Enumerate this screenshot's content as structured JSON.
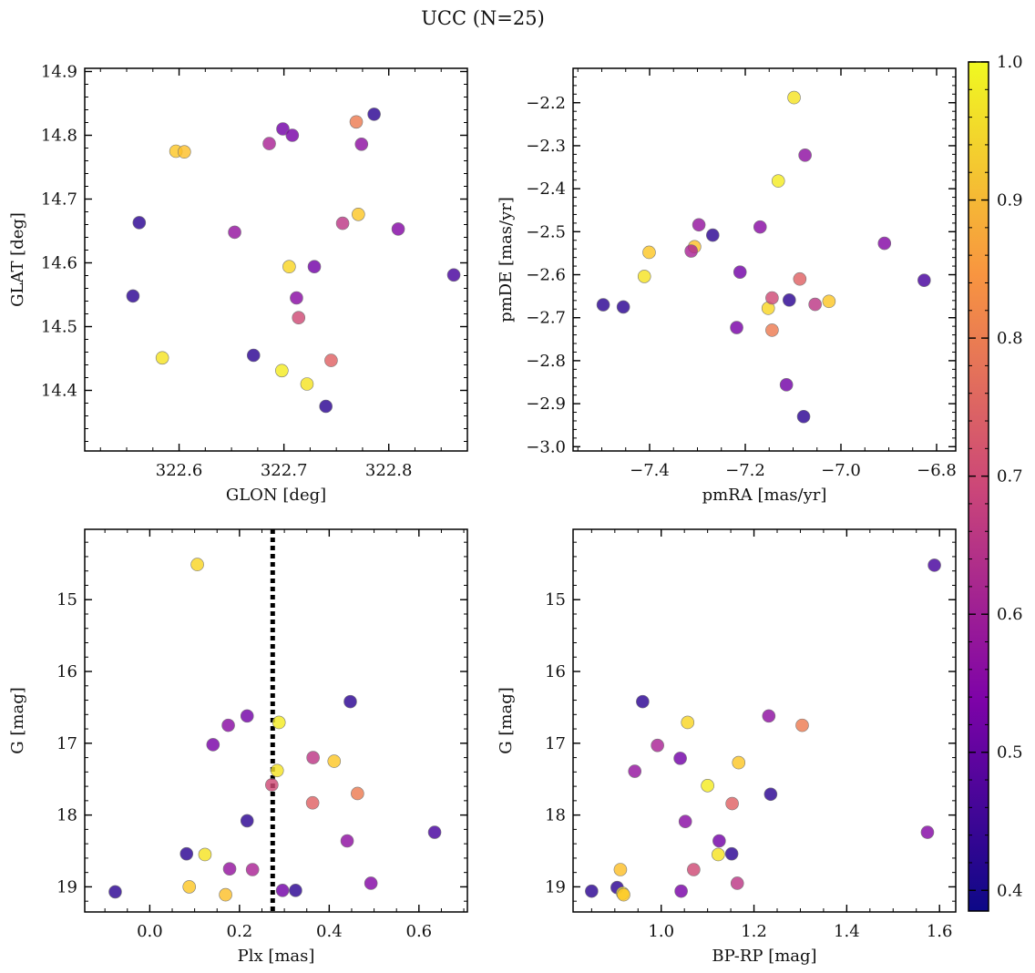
{
  "figure": {
    "title": "UCC (N=25)"
  },
  "colorbar": {
    "range": [
      0.385,
      1.0
    ],
    "ticks": [
      0.4,
      0.5,
      0.6,
      0.7,
      0.8,
      0.9,
      1.0
    ],
    "tick_labels": [
      "0.4",
      "0.5",
      "0.6",
      "0.7",
      "0.8",
      "0.9",
      "1.0"
    ],
    "colormap": "plasma"
  },
  "chart_data": [
    {
      "type": "scatter",
      "xlabel": "GLON [deg]",
      "ylabel": "GLAT [deg]",
      "xlim": [
        322.51,
        322.875
      ],
      "ylim": [
        14.305,
        14.905
      ],
      "xticks": [
        322.6,
        322.7,
        322.8
      ],
      "xtick_labels": [
        "322.6",
        "322.7",
        "322.8"
      ],
      "yticks": [
        14.4,
        14.5,
        14.6,
        14.7,
        14.8,
        14.9
      ],
      "ytick_labels": [
        "14.4",
        "14.5",
        "14.6",
        "14.7",
        "14.8",
        "14.9"
      ],
      "invert_y": false,
      "x": [
        322.562,
        322.556,
        322.584,
        322.597,
        322.605,
        322.653,
        322.671,
        322.686,
        322.699,
        322.708,
        322.712,
        322.705,
        322.714,
        322.698,
        322.722,
        322.729,
        322.74,
        322.745,
        322.756,
        322.771,
        322.774,
        322.786,
        322.769,
        322.809,
        322.862
      ],
      "y": [
        14.663,
        14.548,
        14.451,
        14.775,
        14.774,
        14.648,
        14.455,
        14.787,
        14.81,
        14.8,
        14.545,
        14.594,
        14.514,
        14.431,
        14.41,
        14.594,
        14.375,
        14.447,
        14.662,
        14.676,
        14.786,
        14.833,
        14.821,
        14.653,
        14.581
      ]
    },
    {
      "type": "scatter",
      "xlabel": "pmRA [mas/yr]",
      "ylabel": "pmDE [mas/yr]",
      "xlim": [
        -7.56,
        -6.76
      ],
      "ylim": [
        -3.01,
        -2.12
      ],
      "xticks": [
        -7.4,
        -7.2,
        -7.0,
        -6.8
      ],
      "xtick_labels": [
        "−7.4",
        "−7.2",
        "−7.0",
        "−6.8"
      ],
      "yticks": [
        -3.0,
        -2.9,
        -2.8,
        -2.7,
        -2.6,
        -2.5,
        -2.4,
        -2.3,
        -2.2
      ],
      "ytick_labels": [
        "−3.0",
        "−2.9",
        "−2.8",
        "−2.7",
        "−2.6",
        "−2.5",
        "−2.4",
        "−2.3",
        "−2.2"
      ],
      "invert_y": false,
      "x": [
        -7.497,
        -7.455,
        -7.411,
        -7.401,
        -7.306,
        -7.297,
        -7.268,
        -7.313,
        -7.211,
        -7.218,
        -7.169,
        -7.152,
        -7.144,
        -7.131,
        -7.098,
        -7.114,
        -7.108,
        -7.086,
        -7.054,
        -7.025,
        -7.075,
        -7.078,
        -7.144,
        -6.909,
        -6.826
      ],
      "y": [
        -2.67,
        -2.675,
        -2.604,
        -2.548,
        -2.535,
        -2.484,
        -2.508,
        -2.545,
        -2.594,
        -2.723,
        -2.489,
        -2.678,
        -2.654,
        -2.382,
        -2.188,
        -2.856,
        -2.659,
        -2.61,
        -2.669,
        -2.662,
        -2.322,
        -2.93,
        -2.729,
        -2.527,
        -2.613
      ]
    },
    {
      "type": "scatter",
      "xlabel": "Plx [mas]",
      "ylabel": "G [mag]",
      "xlim": [
        -0.145,
        0.708
      ],
      "ylim": [
        19.35,
        14.02
      ],
      "xticks": [
        0.0,
        0.2,
        0.4,
        0.6
      ],
      "xtick_labels": [
        "0.0",
        "0.2",
        "0.4",
        "0.6"
      ],
      "yticks": [
        15,
        16,
        17,
        18,
        19
      ],
      "ytick_labels": [
        "15",
        "16",
        "17",
        "18",
        "19"
      ],
      "invert_y": true,
      "vline": {
        "x": 0.274,
        "style": "dotted"
      },
      "x": [
        -0.077,
        0.082,
        0.123,
        0.088,
        0.169,
        0.178,
        0.217,
        0.229,
        0.217,
        0.141,
        0.175,
        0.106,
        0.272,
        0.288,
        0.284,
        0.296,
        0.325,
        0.363,
        0.364,
        0.411,
        0.44,
        0.447,
        0.463,
        0.493,
        0.635
      ],
      "y": [
        19.07,
        18.54,
        18.55,
        19.0,
        19.11,
        18.75,
        18.08,
        18.76,
        16.62,
        17.02,
        16.75,
        14.51,
        17.58,
        16.71,
        17.38,
        19.05,
        19.05,
        17.83,
        17.2,
        17.25,
        18.36,
        16.42,
        17.7,
        18.95,
        18.24
      ]
    },
    {
      "type": "scatter",
      "xlabel": "BP-RP [mag]",
      "ylabel": "G [mag]",
      "xlim": [
        0.81,
        1.635
      ],
      "ylim": [
        19.35,
        14.02
      ],
      "xticks": [
        1.0,
        1.2,
        1.4,
        1.6
      ],
      "xtick_labels": [
        "1.0",
        "1.2",
        "1.4",
        "1.6"
      ],
      "yticks": [
        15,
        16,
        17,
        18,
        19
      ],
      "ytick_labels": [
        "15",
        "16",
        "17",
        "18",
        "19"
      ],
      "invert_y": true,
      "x": [
        0.85,
        0.905,
        0.917,
        0.919,
        0.912,
        0.943,
        0.96,
        0.992,
        1.041,
        1.043,
        1.052,
        1.057,
        1.07,
        1.1,
        1.123,
        1.125,
        1.152,
        1.153,
        1.164,
        1.167,
        1.232,
        1.236,
        1.304,
        1.574,
        1.589
      ],
      "y": [
        19.06,
        19.01,
        19.09,
        19.11,
        18.76,
        17.39,
        16.42,
        17.03,
        17.21,
        19.06,
        18.09,
        16.71,
        18.76,
        17.59,
        18.55,
        18.36,
        18.54,
        17.84,
        18.95,
        17.27,
        16.62,
        17.71,
        16.75,
        18.24,
        14.52
      ]
    }
  ],
  "point_colors": [
    0.42,
    0.42,
    0.97,
    0.93,
    0.92,
    0.58,
    0.42,
    0.62,
    0.52,
    0.53,
    0.56,
    0.95,
    0.7,
    0.98,
    0.97,
    0.52,
    0.42,
    0.75,
    0.66,
    0.93,
    0.57,
    0.42,
    0.8,
    0.55,
    0.45
  ]
}
